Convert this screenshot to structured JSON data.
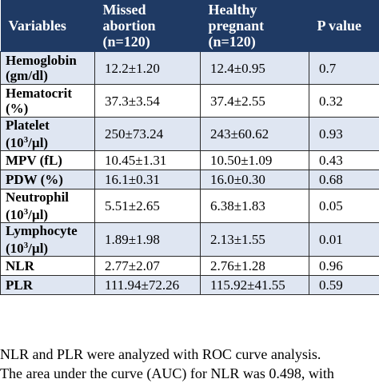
{
  "table": {
    "headers": {
      "variables": "Variables",
      "missed_line1": "Missed",
      "missed_line2": "abortion",
      "missed_line3": "(n=120)",
      "healthy_line1": "Healthy",
      "healthy_line2": "pregnant",
      "healthy_line3": "(n=120)",
      "p_value": "P value"
    },
    "rows": [
      {
        "var_line1": "Hemoglobin",
        "var_line2": "(gm/dl)",
        "missed": "12.2±1.20",
        "healthy": "12.4±0.95",
        "p": "0.7"
      },
      {
        "var_line1": "Hematocrit",
        "var_line2": "(%)",
        "missed": "37.3±3.54",
        "healthy": "37.4±2.55",
        "p": "0.32"
      },
      {
        "var_line1": "Platelet",
        "var_pre": "(10",
        "var_sup": "3",
        "var_post": "/µl)",
        "missed": "250±73.24",
        "healthy": "243±60.62",
        "p": "0.93"
      },
      {
        "var": "MPV (fL)",
        "missed": "10.45±1.31",
        "healthy": "10.50±1.09",
        "p": "0.43"
      },
      {
        "var": "PDW (%)",
        "missed": "16.1±0.31",
        "healthy": "16.0±0.30",
        "p": "0.68"
      },
      {
        "var_line1": "Neutrophil",
        "var_pre": "(10",
        "var_sup": "3",
        "var_post": "/µl)",
        "missed": "5.51±2.65",
        "healthy": "6.38±1.83",
        "p": "0.05"
      },
      {
        "var_line1": "Lymphocyte",
        "var_pre": "(10",
        "var_sup": "3",
        "var_post": "/µl)",
        "missed": "1.89±1.98",
        "healthy": "2.13±1.55",
        "p": "0.01"
      },
      {
        "var": "NLR",
        "missed": "2.77±2.07",
        "healthy": "2.76±1.28",
        "p": "0.96"
      },
      {
        "var": "PLR",
        "missed": "111.94±72.26",
        "healthy": "115.92±41.55",
        "p": "0.59"
      }
    ]
  },
  "caption": {
    "line1": "NLR and PLR were analyzed with ROC curve analysis.",
    "line2": "The area under the curve (AUC) for NLR was 0.498, with"
  }
}
